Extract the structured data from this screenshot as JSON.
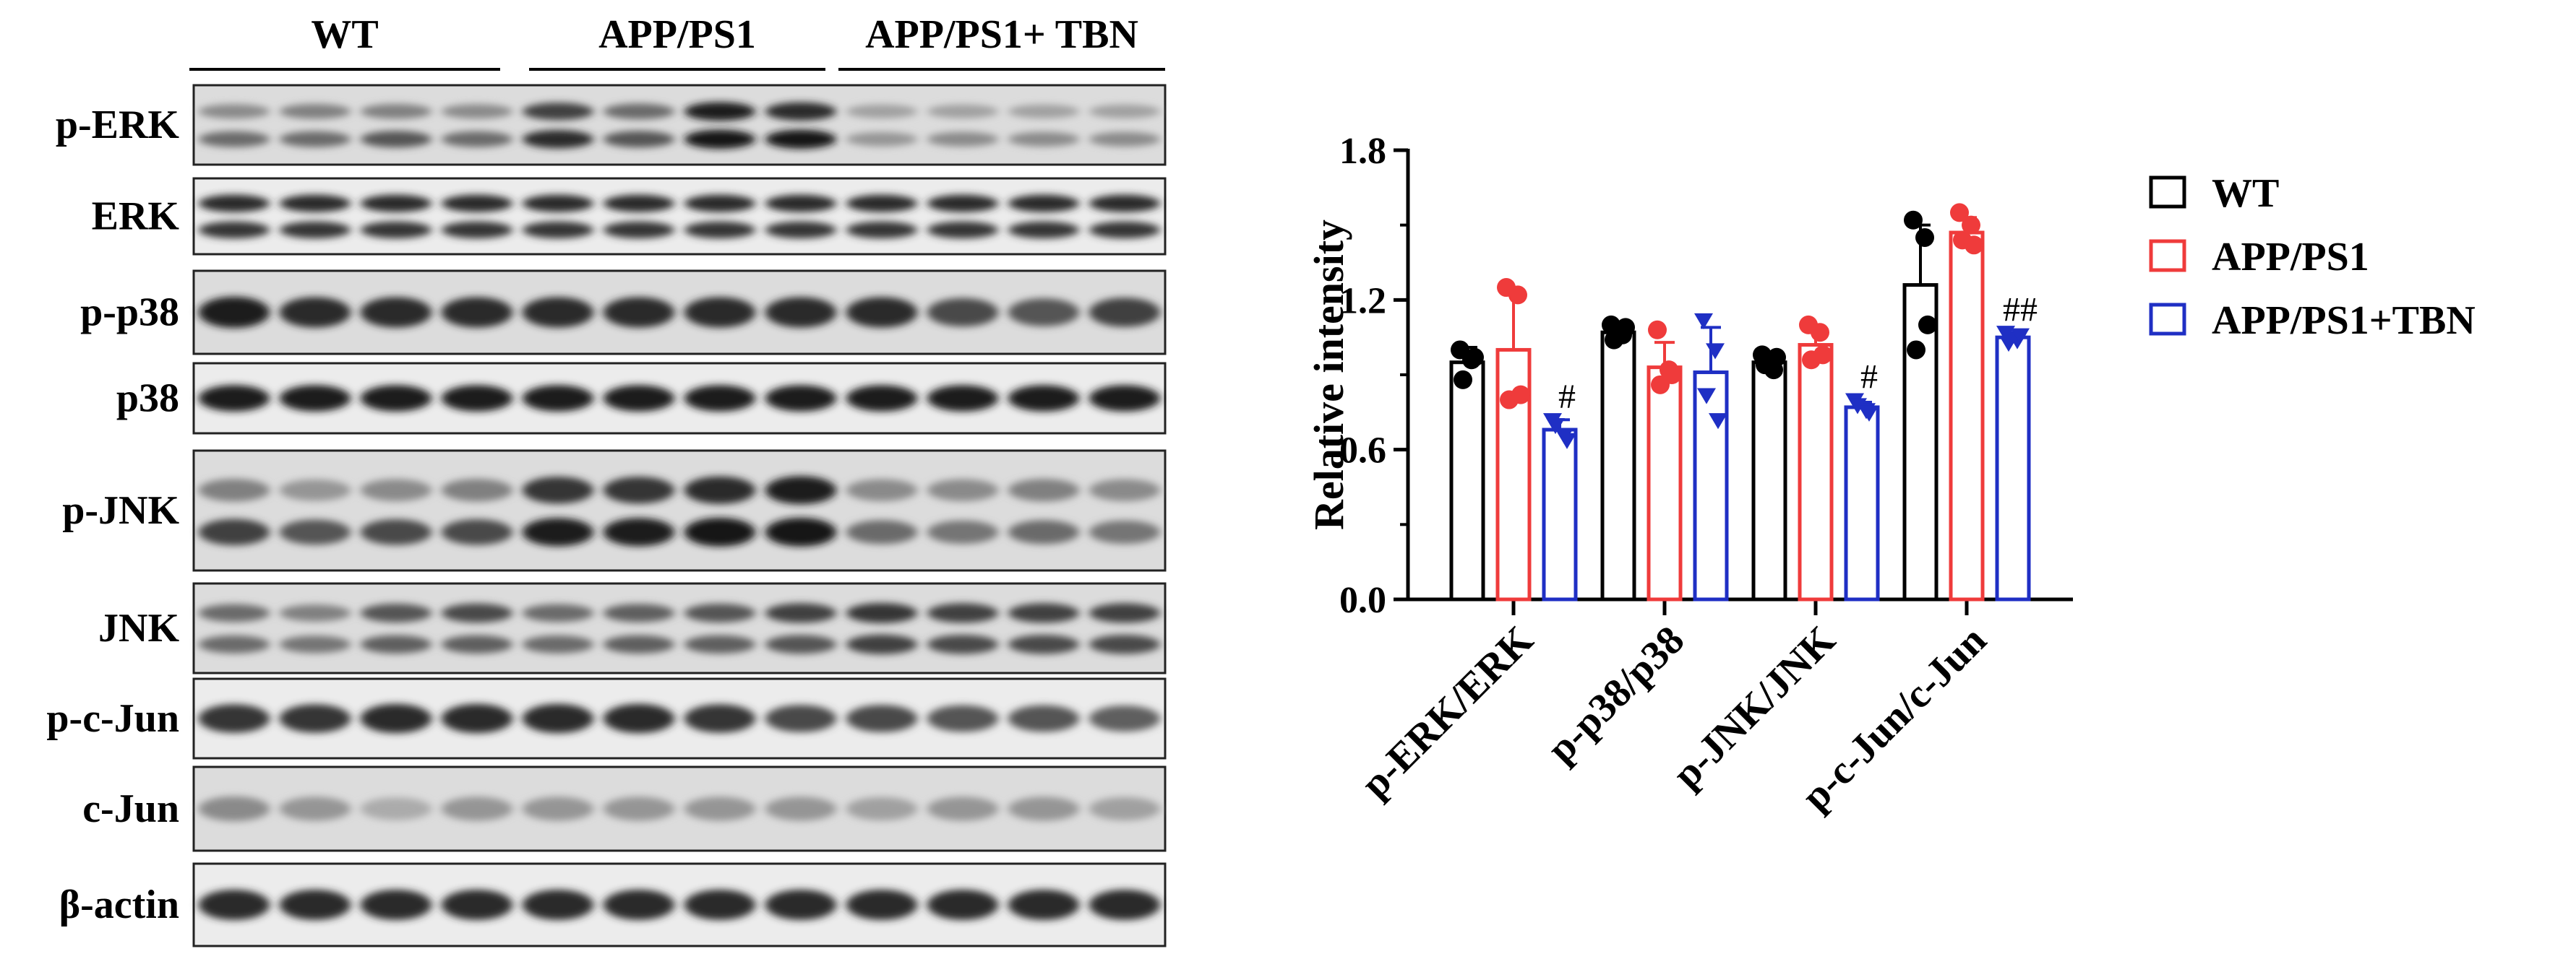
{
  "blot": {
    "groups": [
      "WT",
      "APP/PS1",
      "APP/PS1+ TBN"
    ],
    "lanes_per_group": 4,
    "panels": [
      {
        "label": "p-ERK",
        "bands": 2,
        "intensity": [
          [
            0.45,
            0.5,
            0.5,
            0.45,
            0.8,
            0.6,
            0.95,
            0.9,
            0.35,
            0.35,
            0.35,
            0.35
          ],
          [
            0.6,
            0.6,
            0.7,
            0.6,
            0.9,
            0.7,
            1.0,
            1.0,
            0.4,
            0.45,
            0.45,
            0.45
          ]
        ]
      },
      {
        "label": "ERK",
        "bands": 2,
        "intensity": [
          [
            0.9,
            0.9,
            0.9,
            0.9,
            0.9,
            0.9,
            0.9,
            0.9,
            0.9,
            0.9,
            0.9,
            0.9
          ],
          [
            0.85,
            0.85,
            0.85,
            0.85,
            0.85,
            0.85,
            0.85,
            0.85,
            0.85,
            0.85,
            0.85,
            0.85
          ]
        ]
      },
      {
        "label": "p-p38",
        "bands": 1,
        "intensity": [
          [
            0.95,
            0.9,
            0.9,
            0.9,
            0.9,
            0.9,
            0.9,
            0.9,
            0.9,
            0.75,
            0.7,
            0.8
          ]
        ]
      },
      {
        "label": "p38",
        "bands": 1,
        "intensity": [
          [
            0.95,
            0.95,
            0.95,
            0.95,
            0.95,
            0.95,
            0.95,
            0.95,
            0.95,
            0.95,
            0.95,
            0.95
          ]
        ]
      },
      {
        "label": "p-JNK",
        "bands": 2,
        "intensity": [
          [
            0.5,
            0.4,
            0.45,
            0.5,
            0.85,
            0.85,
            0.9,
            0.95,
            0.45,
            0.45,
            0.5,
            0.45
          ],
          [
            0.8,
            0.7,
            0.75,
            0.75,
            0.95,
            0.95,
            1.0,
            1.0,
            0.6,
            0.55,
            0.6,
            0.55
          ]
        ]
      },
      {
        "label": "JNK",
        "bands": 2,
        "intensity": [
          [
            0.6,
            0.5,
            0.7,
            0.75,
            0.6,
            0.65,
            0.7,
            0.8,
            0.85,
            0.8,
            0.8,
            0.8
          ],
          [
            0.6,
            0.55,
            0.65,
            0.65,
            0.6,
            0.65,
            0.65,
            0.7,
            0.8,
            0.75,
            0.75,
            0.75
          ]
        ]
      },
      {
        "label": "p-c-Jun",
        "bands": 1,
        "intensity": [
          [
            0.85,
            0.85,
            0.9,
            0.9,
            0.9,
            0.9,
            0.85,
            0.75,
            0.75,
            0.7,
            0.7,
            0.65
          ]
        ]
      },
      {
        "label": "c-Jun",
        "bands": 1,
        "intensity": [
          [
            0.45,
            0.4,
            0.3,
            0.4,
            0.4,
            0.4,
            0.4,
            0.4,
            0.35,
            0.4,
            0.4,
            0.35
          ]
        ]
      },
      {
        "label": "β-actin",
        "bands": 1,
        "intensity": [
          [
            0.9,
            0.9,
            0.9,
            0.9,
            0.9,
            0.9,
            0.9,
            0.9,
            0.9,
            0.9,
            0.9,
            0.9
          ]
        ]
      }
    ]
  },
  "chart_data": {
    "type": "bar",
    "ylabel": "Relative intensity",
    "ylim": [
      0,
      1.8
    ],
    "yticks": [
      "0.0",
      "0.6",
      "1.2",
      "1.8"
    ],
    "categories": [
      "p-ERK/ERK",
      "p-p38/p38",
      "p-JNK/JNK",
      "p-c-Jun/c-Jun"
    ],
    "legend_position": "right",
    "series": [
      {
        "name": "WT",
        "color": "#000000",
        "marker": "circle",
        "values": [
          0.95,
          1.07,
          0.95,
          1.26
        ],
        "errors": [
          0.06,
          0.04,
          0.04,
          0.24
        ],
        "points": [
          [
            1.0,
            0.96,
            0.88,
            0.97
          ],
          [
            1.1,
            1.06,
            1.04,
            1.09
          ],
          [
            0.98,
            0.92,
            0.94,
            0.97
          ],
          [
            1.52,
            1.45,
            1.0,
            1.1
          ]
        ]
      },
      {
        "name": "APP/PS1",
        "color": "#ef3b3b",
        "marker": "circle",
        "values": [
          1.0,
          0.93,
          1.02,
          1.47
        ],
        "errors": [
          0.22,
          0.1,
          0.06,
          0.06
        ],
        "points": [
          [
            1.25,
            1.22,
            0.8,
            0.82
          ],
          [
            1.08,
            0.92,
            0.86,
            0.9
          ],
          [
            1.1,
            1.07,
            0.96,
            0.98
          ],
          [
            1.55,
            1.5,
            1.44,
            1.42
          ]
        ]
      },
      {
        "name": "APP/PS1+TBN",
        "color": "#1f2fc4",
        "marker": "triangle-down",
        "values": [
          0.68,
          0.91,
          0.77,
          1.05
        ],
        "errors": [
          0.04,
          0.18,
          0.02,
          0.02
        ],
        "points": [
          [
            0.72,
            0.66,
            0.7,
            0.64
          ],
          [
            1.12,
            1.0,
            0.82,
            0.72
          ],
          [
            0.8,
            0.76,
            0.78,
            0.75
          ],
          [
            1.07,
            1.04,
            1.03,
            1.06
          ]
        ]
      }
    ],
    "annotations": [
      {
        "category": 0,
        "series": 2,
        "text": "#"
      },
      {
        "category": 2,
        "series": 2,
        "text": "#"
      },
      {
        "category": 3,
        "series": 2,
        "text": "##"
      }
    ]
  }
}
